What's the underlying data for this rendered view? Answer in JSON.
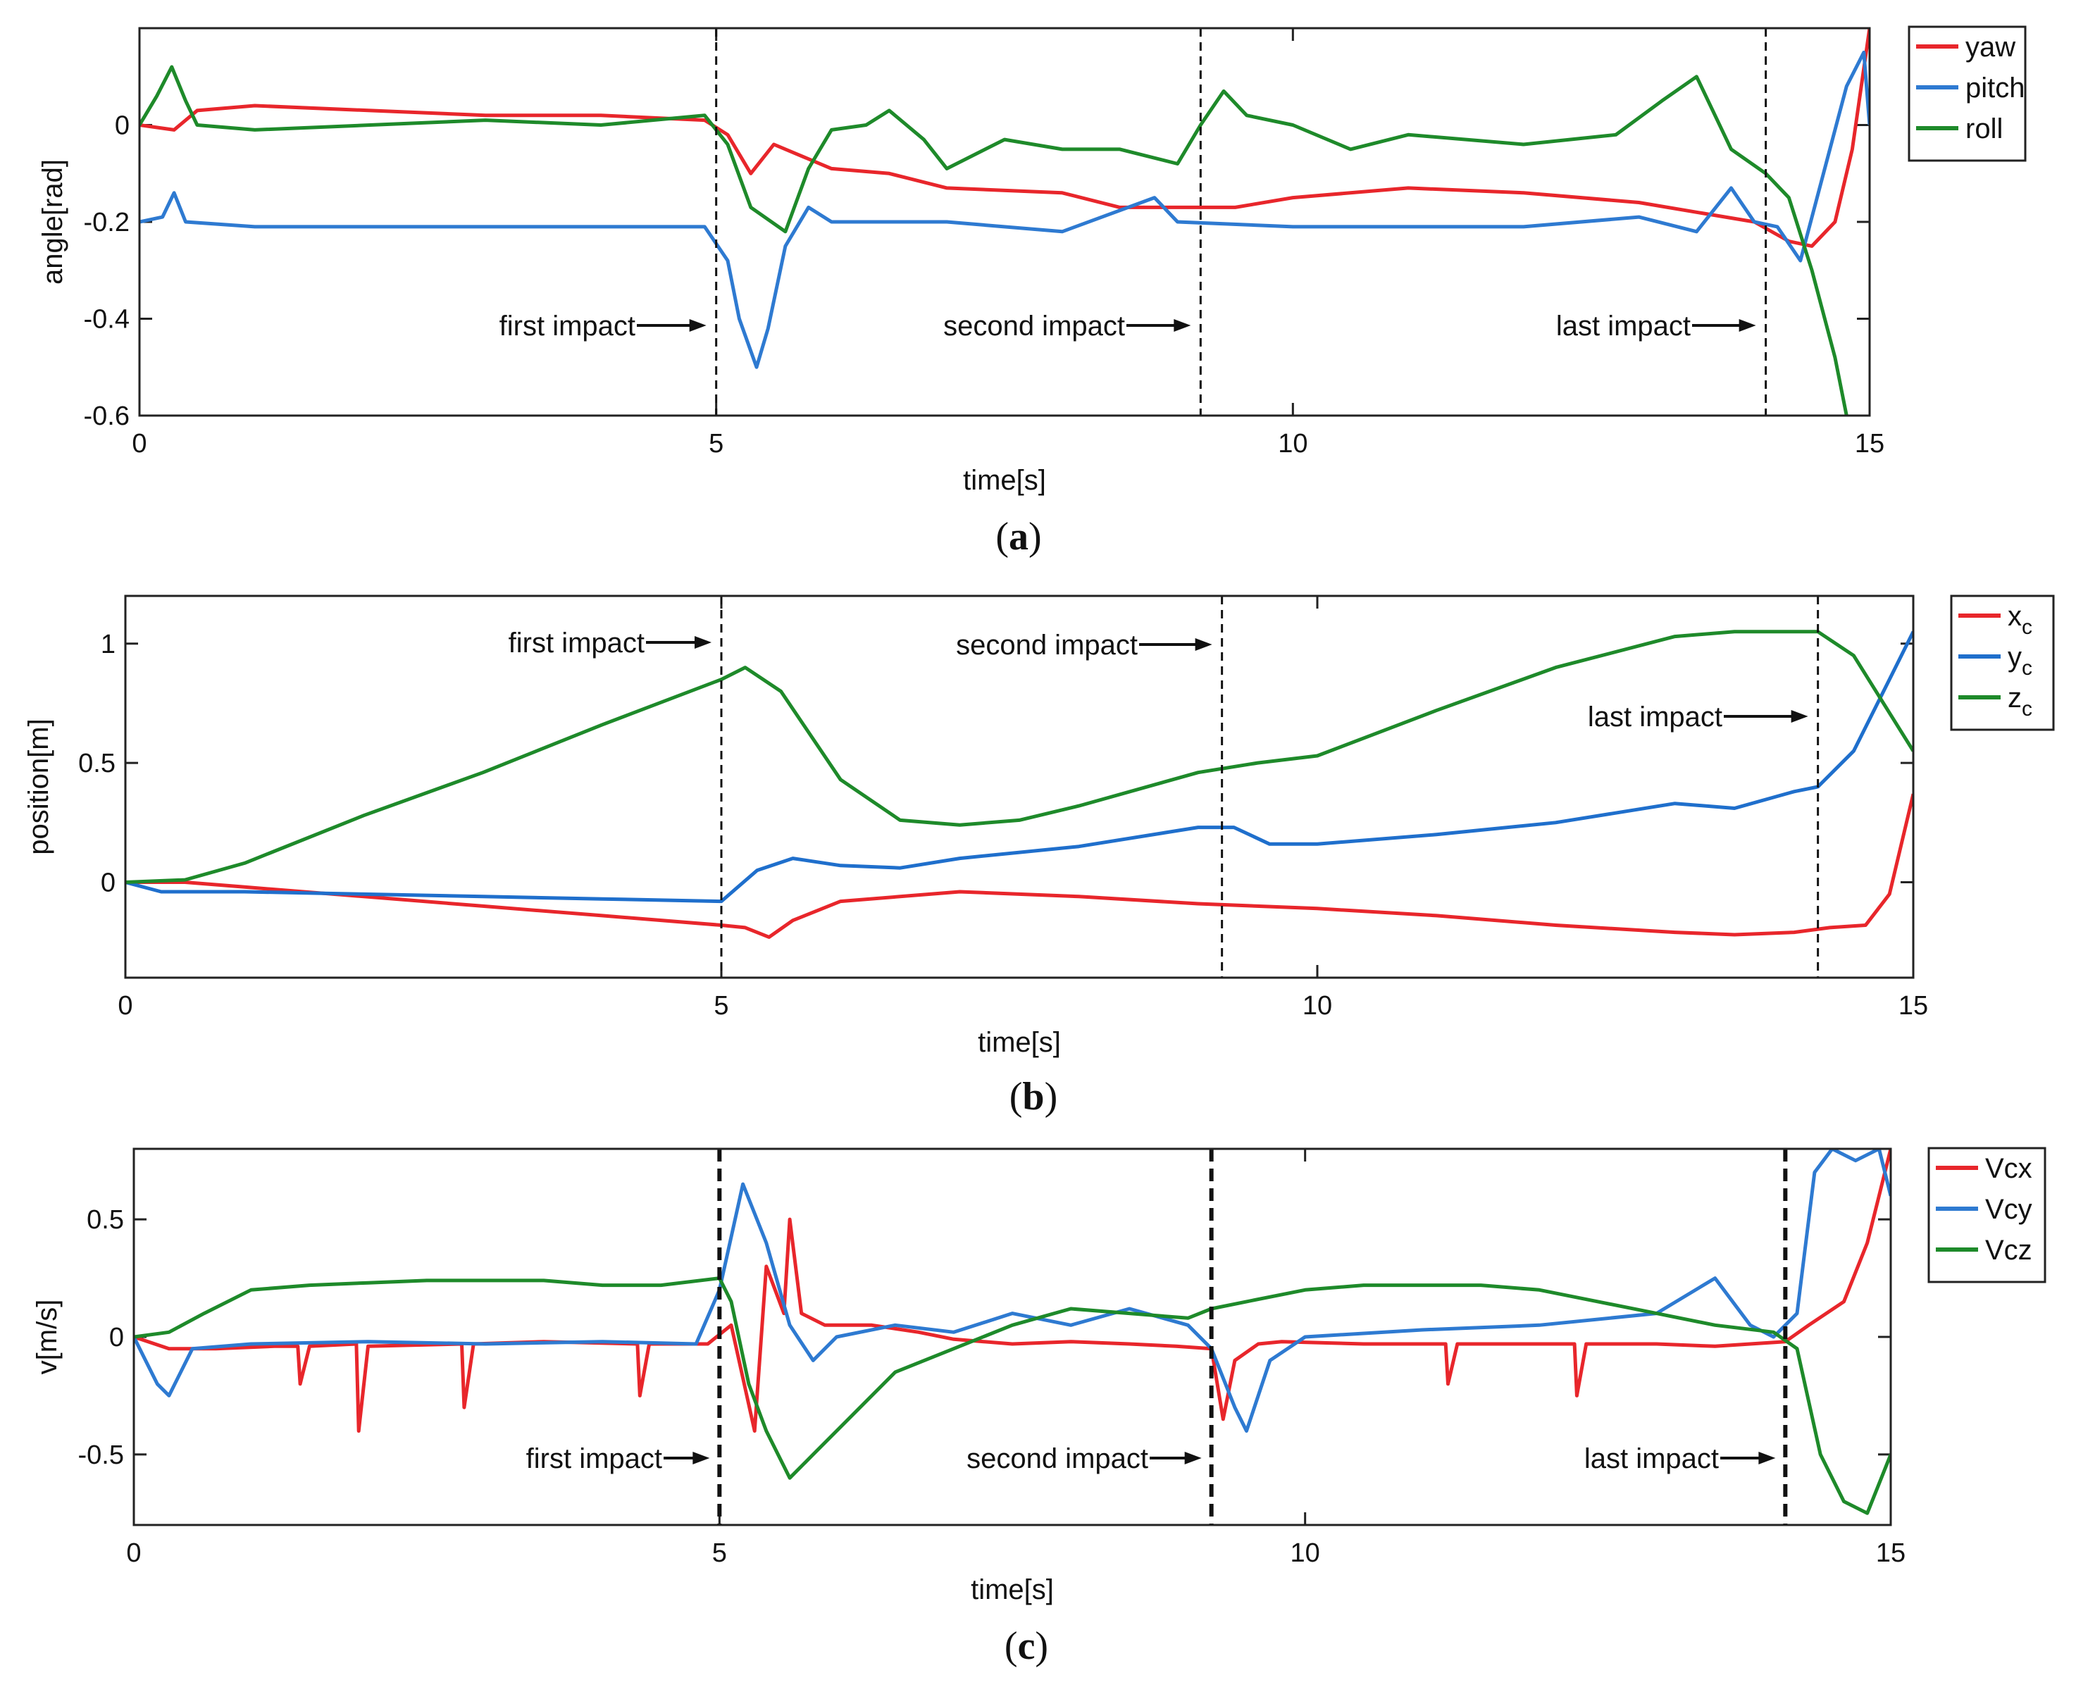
{
  "chart_data": [
    {
      "type": "line",
      "caption": "(a)",
      "xlabel": "time[s]",
      "ylabel": "angle[rad]",
      "xlim": [
        0,
        15
      ],
      "ylim": [
        -0.6,
        0.2
      ],
      "xticks": [
        0,
        5,
        10,
        15
      ],
      "yticks": [
        -0.6,
        -0.4,
        -0.2,
        0
      ],
      "xtick_labels": [
        "0",
        "5",
        "10",
        "15"
      ],
      "ytick_labels": [
        "-0.6",
        "-0.4",
        "-0.2",
        "0"
      ],
      "legend_position": "outside-right-top",
      "impacts": [
        {
          "label": "first impact",
          "x": 5.0
        },
        {
          "label": "second impact",
          "x": 9.2
        },
        {
          "label": "last impact",
          "x": 14.1
        }
      ],
      "series": [
        {
          "name": "yaw",
          "color": "#e8262b",
          "x": [
            0,
            0.3,
            0.5,
            1,
            2,
            3,
            4,
            4.9,
            5.1,
            5.3,
            5.5,
            5.7,
            6,
            6.5,
            7,
            8,
            8.5,
            9,
            9.5,
            10,
            11,
            12,
            13,
            13.5,
            14,
            14.3,
            14.5,
            14.7,
            14.85,
            15
          ],
          "y": [
            0,
            -0.01,
            0.03,
            0.04,
            0.03,
            0.02,
            0.02,
            0.01,
            -0.02,
            -0.1,
            -0.04,
            -0.06,
            -0.09,
            -0.1,
            -0.13,
            -0.14,
            -0.17,
            -0.17,
            -0.17,
            -0.15,
            -0.13,
            -0.14,
            -0.16,
            -0.18,
            -0.2,
            -0.24,
            -0.25,
            -0.2,
            -0.05,
            0.2
          ]
        },
        {
          "name": "pitch",
          "color": "#2e7ad1",
          "x": [
            0,
            0.2,
            0.3,
            0.4,
            1,
            2,
            3,
            4,
            4.9,
            5.1,
            5.2,
            5.35,
            5.45,
            5.6,
            5.8,
            6,
            6.5,
            7,
            8,
            8.8,
            9,
            10,
            11,
            12,
            13,
            13.5,
            13.8,
            14,
            14.2,
            14.4,
            14.6,
            14.8,
            14.95,
            15
          ],
          "y": [
            -0.2,
            -0.19,
            -0.14,
            -0.2,
            -0.21,
            -0.21,
            -0.21,
            -0.21,
            -0.21,
            -0.28,
            -0.4,
            -0.5,
            -0.42,
            -0.25,
            -0.17,
            -0.2,
            -0.2,
            -0.2,
            -0.22,
            -0.15,
            -0.2,
            -0.21,
            -0.21,
            -0.21,
            -0.19,
            -0.22,
            -0.13,
            -0.2,
            -0.21,
            -0.28,
            -0.1,
            0.08,
            0.15,
            0
          ]
        },
        {
          "name": "roll",
          "color": "#1e8a2a",
          "x": [
            0,
            0.15,
            0.28,
            0.4,
            0.5,
            1,
            2,
            3,
            4,
            4.9,
            5.1,
            5.3,
            5.6,
            5.8,
            6,
            6.3,
            6.5,
            6.8,
            7,
            7.5,
            8,
            8.5,
            9,
            9.2,
            9.4,
            9.6,
            10,
            10.5,
            11,
            12,
            12.8,
            13.2,
            13.5,
            13.8,
            14.1,
            14.3,
            14.5,
            14.7,
            14.8
          ],
          "y": [
            0,
            0.06,
            0.12,
            0.05,
            0,
            -0.01,
            0,
            0.01,
            0,
            0.02,
            -0.04,
            -0.17,
            -0.22,
            -0.09,
            -0.01,
            0,
            0.03,
            -0.03,
            -0.09,
            -0.03,
            -0.05,
            -0.05,
            -0.08,
            0,
            0.07,
            0.02,
            0,
            -0.05,
            -0.02,
            -0.04,
            -0.02,
            0.05,
            0.1,
            -0.05,
            -0.1,
            -0.15,
            -0.3,
            -0.48,
            -0.6
          ]
        }
      ]
    },
    {
      "type": "line",
      "caption": "(b)",
      "xlabel": "time[s]",
      "ylabel": "position[m]",
      "xlim": [
        0,
        15
      ],
      "ylim": [
        -0.4,
        1.2
      ],
      "xticks": [
        0,
        5,
        10,
        15
      ],
      "yticks": [
        0,
        0.5,
        1
      ],
      "xtick_labels": [
        "0",
        "5",
        "10",
        "15"
      ],
      "ytick_labels": [
        "0",
        "0.5",
        "1"
      ],
      "legend_position": "outside-right-top",
      "impacts": [
        {
          "label": "first impact",
          "x": 5.0
        },
        {
          "label": "second impact",
          "x": 9.2
        },
        {
          "label": "last impact",
          "x": 14.2
        }
      ],
      "series": [
        {
          "name": "x",
          "subscript": "c",
          "color": "#e8262b",
          "x": [
            0,
            0.5,
            1,
            2,
            3,
            4,
            5,
            5.2,
            5.4,
            5.6,
            6,
            7,
            8,
            9,
            10,
            11,
            12,
            13,
            13.5,
            14,
            14.3,
            14.6,
            14.8,
            15
          ],
          "y": [
            0,
            0,
            -0.02,
            -0.06,
            -0.1,
            -0.14,
            -0.18,
            -0.19,
            -0.23,
            -0.16,
            -0.08,
            -0.04,
            -0.06,
            -0.09,
            -0.11,
            -0.14,
            -0.18,
            -0.21,
            -0.22,
            -0.21,
            -0.19,
            -0.18,
            -0.05,
            0.37
          ]
        },
        {
          "name": "y",
          "subscript": "c",
          "color": "#1f6fcc",
          "x": [
            0,
            0.3,
            1,
            2,
            3,
            4,
            5,
            5.3,
            5.6,
            6,
            6.5,
            7,
            8,
            9,
            9.3,
            9.6,
            10,
            11,
            12,
            13,
            13.5,
            14,
            14.2,
            14.5,
            14.8,
            15
          ],
          "y": [
            0,
            -0.04,
            -0.04,
            -0.05,
            -0.06,
            -0.07,
            -0.08,
            0.05,
            0.1,
            0.07,
            0.06,
            0.1,
            0.15,
            0.23,
            0.23,
            0.16,
            0.16,
            0.2,
            0.25,
            0.33,
            0.31,
            0.38,
            0.4,
            0.55,
            0.85,
            1.05
          ]
        },
        {
          "name": "z",
          "subscript": "c",
          "color": "#1e8a2a",
          "x": [
            0,
            0.5,
            1,
            2,
            3,
            4,
            5,
            5.2,
            5.5,
            6,
            6.5,
            7,
            7.5,
            8,
            9,
            9.5,
            10,
            11,
            12,
            13,
            13.5,
            14.2,
            14.5,
            15
          ],
          "y": [
            0,
            0.01,
            0.08,
            0.28,
            0.46,
            0.66,
            0.85,
            0.9,
            0.8,
            0.43,
            0.26,
            0.24,
            0.26,
            0.32,
            0.46,
            0.5,
            0.53,
            0.72,
            0.9,
            1.03,
            1.05,
            1.05,
            0.95,
            0.55
          ]
        }
      ]
    },
    {
      "type": "line",
      "caption": "(c)",
      "xlabel": "time[s]",
      "ylabel": "v[m/s]",
      "xlim": [
        0,
        15
      ],
      "ylim": [
        -0.8,
        0.8
      ],
      "xticks": [
        0,
        5,
        10,
        15
      ],
      "yticks": [
        -0.5,
        0,
        0.5
      ],
      "xtick_labels": [
        "0",
        "5",
        "10",
        "15"
      ],
      "ytick_labels": [
        "-0.5",
        "0",
        "0.5"
      ],
      "legend_position": "outside-right-top",
      "impacts": [
        {
          "label": "first impact",
          "x": 5.0
        },
        {
          "label": "second impact",
          "x": 9.2
        },
        {
          "label": "last impact",
          "x": 14.1
        }
      ],
      "series": [
        {
          "name": "Vcx",
          "color": "#e8262b",
          "x": [
            0,
            0.3,
            0.7,
            1.2,
            1.4,
            1.42,
            1.5,
            1.9,
            1.92,
            2.0,
            2.8,
            2.82,
            2.9,
            3.5,
            4.3,
            4.32,
            4.4,
            4.9,
            5.1,
            5.3,
            5.4,
            5.55,
            5.6,
            5.7,
            5.9,
            6.3,
            6.7,
            7.0,
            7.5,
            8.0,
            8.5,
            8.9,
            9.2,
            9.3,
            9.4,
            9.6,
            9.8,
            10.5,
            11.2,
            11.22,
            11.3,
            12.0,
            12.3,
            12.32,
            12.4,
            13.0,
            13.5,
            13.8,
            14.1,
            14.3,
            14.6,
            14.8,
            14.9,
            15
          ],
          "y": [
            0,
            -0.05,
            -0.05,
            -0.04,
            -0.04,
            -0.2,
            -0.04,
            -0.03,
            -0.4,
            -0.04,
            -0.03,
            -0.3,
            -0.03,
            -0.02,
            -0.03,
            -0.25,
            -0.03,
            -0.03,
            0.05,
            -0.4,
            0.3,
            0.1,
            0.5,
            0.1,
            0.05,
            0.05,
            0.02,
            -0.01,
            -0.03,
            -0.02,
            -0.03,
            -0.04,
            -0.05,
            -0.35,
            -0.1,
            -0.03,
            -0.02,
            -0.03,
            -0.03,
            -0.2,
            -0.03,
            -0.03,
            -0.03,
            -0.25,
            -0.03,
            -0.03,
            -0.04,
            -0.03,
            -0.02,
            0.05,
            0.15,
            0.4,
            0.6,
            0.8
          ]
        },
        {
          "name": "Vcy",
          "color": "#2e7ad1",
          "x": [
            0,
            0.1,
            0.2,
            0.3,
            0.5,
            1,
            2,
            3,
            4,
            4.8,
            5.0,
            5.2,
            5.4,
            5.6,
            5.8,
            6,
            6.5,
            7,
            7.5,
            8,
            8.5,
            9,
            9.2,
            9.4,
            9.5,
            9.7,
            10,
            11,
            12,
            13,
            13.5,
            13.8,
            14,
            14.2,
            14.35,
            14.5,
            14.7,
            14.9,
            15
          ],
          "y": [
            0,
            -0.1,
            -0.2,
            -0.25,
            -0.05,
            -0.03,
            -0.02,
            -0.03,
            -0.02,
            -0.03,
            0.2,
            0.65,
            0.4,
            0.05,
            -0.1,
            0,
            0.05,
            0.02,
            0.1,
            0.05,
            0.12,
            0.05,
            -0.05,
            -0.3,
            -0.4,
            -0.1,
            0,
            0.03,
            0.05,
            0.1,
            0.25,
            0.05,
            0,
            0.1,
            0.7,
            0.8,
            0.75,
            0.8,
            0.6
          ]
        },
        {
          "name": "Vcz",
          "color": "#1e8a2a",
          "x": [
            0,
            0.3,
            0.6,
            1,
            1.5,
            2,
            2.5,
            3,
            3.5,
            4,
            4.5,
            5,
            5.1,
            5.25,
            5.4,
            5.6,
            5.8,
            6,
            6.5,
            7,
            7.5,
            8,
            8.5,
            9,
            9.2,
            9.5,
            10,
            10.5,
            11,
            11.5,
            12,
            12.5,
            13,
            13.5,
            14,
            14.2,
            14.4,
            14.6,
            14.8,
            15
          ],
          "y": [
            0,
            0.02,
            0.1,
            0.2,
            0.22,
            0.23,
            0.24,
            0.24,
            0.24,
            0.22,
            0.22,
            0.25,
            0.15,
            -0.2,
            -0.4,
            -0.6,
            -0.5,
            -0.4,
            -0.15,
            -0.05,
            0.05,
            0.12,
            0.1,
            0.08,
            0.12,
            0.15,
            0.2,
            0.22,
            0.22,
            0.22,
            0.2,
            0.15,
            0.1,
            0.05,
            0.02,
            -0.05,
            -0.5,
            -0.7,
            -0.75,
            -0.5
          ]
        }
      ]
    }
  ]
}
